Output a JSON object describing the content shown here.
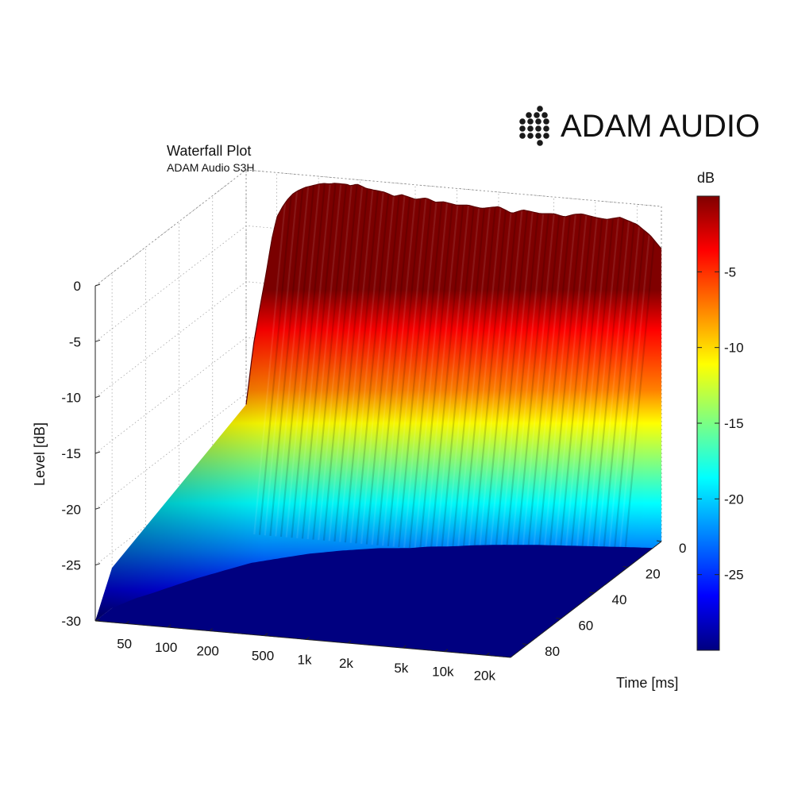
{
  "brand": {
    "name": "ADAM AUDIO"
  },
  "chart_data": {
    "type": "area",
    "title": "Waterfall Plot",
    "subtitle": "ADAM Audio S3H",
    "xlabel": "",
    "ylabel": "Time [ms]",
    "zlabel": "Level [dB]",
    "x_scale": "log",
    "xlim": [
      30,
      30000
    ],
    "ylim": [
      0,
      90
    ],
    "zlim": [
      -30,
      0
    ],
    "x_ticks": [
      {
        "value": 50,
        "label": "50"
      },
      {
        "value": 100,
        "label": "100"
      },
      {
        "value": 200,
        "label": "200"
      },
      {
        "value": 500,
        "label": "500"
      },
      {
        "value": 1000,
        "label": "1k"
      },
      {
        "value": 2000,
        "label": "2k"
      },
      {
        "value": 5000,
        "label": "5k"
      },
      {
        "value": 10000,
        "label": "10k"
      },
      {
        "value": 20000,
        "label": "20k"
      }
    ],
    "y_ticks": [
      {
        "value": 0,
        "label": "0"
      },
      {
        "value": 20,
        "label": "20"
      },
      {
        "value": 40,
        "label": "40"
      },
      {
        "value": 60,
        "label": "60"
      },
      {
        "value": 80,
        "label": "80"
      }
    ],
    "z_ticks": [
      {
        "value": 0,
        "label": "0"
      },
      {
        "value": -5,
        "label": "-5"
      },
      {
        "value": -10,
        "label": "-10"
      },
      {
        "value": -15,
        "label": "-15"
      },
      {
        "value": -20,
        "label": "-20"
      },
      {
        "value": -25,
        "label": "-25"
      },
      {
        "value": -30,
        "label": "-30"
      }
    ],
    "colorbar": {
      "label": "dB",
      "range": [
        -30,
        0
      ],
      "ticks": [
        {
          "value": -5,
          "label": "-5"
        },
        {
          "value": -10,
          "label": "-10"
        },
        {
          "value": -15,
          "label": "-15"
        },
        {
          "value": -20,
          "label": "-20"
        },
        {
          "value": -25,
          "label": "-25"
        }
      ]
    },
    "front_response": {
      "x": [
        30,
        34,
        38,
        42,
        46,
        50,
        55,
        60,
        65,
        70,
        75,
        80,
        85,
        90,
        95,
        100,
        110,
        120,
        130,
        140,
        150,
        160,
        170,
        180,
        190,
        200,
        220,
        250,
        300,
        350,
        400,
        500,
        600,
        700,
        800,
        1000,
        1200,
        1500,
        2000,
        2500,
        3000,
        4000,
        5000,
        6000,
        7000,
        8000,
        10000,
        12000,
        15000,
        20000,
        25000,
        30000
      ],
      "z": [
        -21,
        -15.5,
        -12,
        -9,
        -6,
        -4,
        -3,
        -2.3,
        -1.8,
        -1.5,
        -1.3,
        -1.1,
        -1,
        -0.9,
        -0.8,
        -0.7,
        -0.6,
        -0.6,
        -0.5,
        -0.5,
        -0.5,
        -0.5,
        -0.6,
        -0.5,
        -0.4,
        -0.5,
        -0.7,
        -0.8,
        -0.9,
        -1.2,
        -1.0,
        -1.3,
        -1.1,
        -1.4,
        -1.3,
        -1.5,
        -1.4,
        -1.6,
        -1.3,
        -1.8,
        -1.4,
        -1.6,
        -1.5,
        -1.7,
        -1.4,
        -1.3,
        -1.5,
        -1.6,
        -1.3,
        -1.8,
        -2.7,
        -3.8
      ]
    },
    "decay_envelope": {
      "x": [
        30,
        35,
        40,
        50,
        60,
        80,
        100,
        150,
        200,
        300,
        500,
        800,
        1000,
        1500,
        2000,
        3000,
        5000,
        10000,
        20000,
        30000
      ],
      "t_ms": [
        80,
        72,
        68,
        60,
        54,
        46,
        40,
        34,
        30,
        26,
        22,
        20,
        18,
        16,
        14,
        12,
        10,
        8,
        6,
        5
      ]
    }
  }
}
